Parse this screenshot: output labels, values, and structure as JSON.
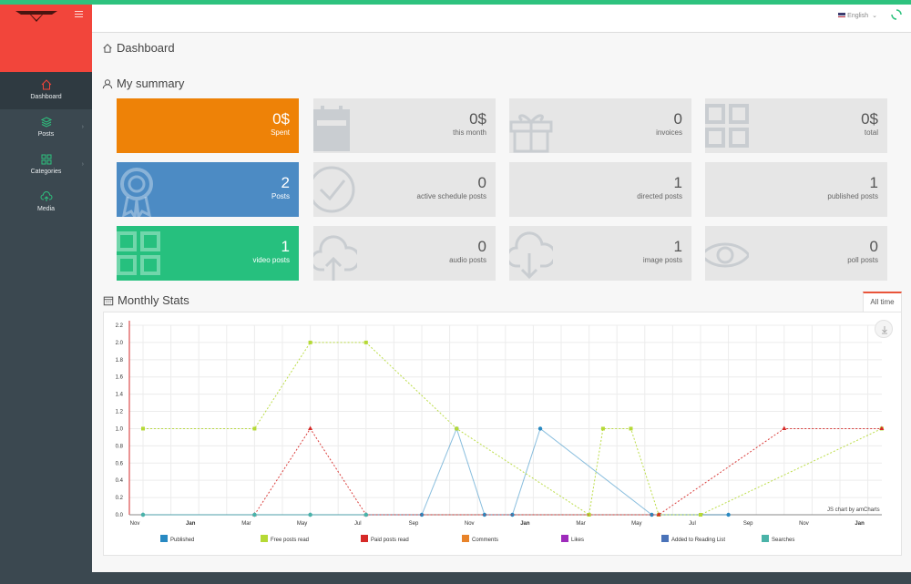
{
  "header": {
    "language": "English"
  },
  "sidebar": {
    "items": [
      {
        "label": "Dashboard",
        "icon": "home-icon",
        "active": true
      },
      {
        "label": "Posts",
        "icon": "layers-icon",
        "has_children": true
      },
      {
        "label": "Categories",
        "icon": "grid-icon",
        "has_children": true
      },
      {
        "label": "Media",
        "icon": "cloud-upload-icon"
      }
    ]
  },
  "breadcrumb": "Dashboard",
  "summary": {
    "title": "My summary",
    "cards": [
      {
        "value": "0$",
        "label": "Spent",
        "color": "#ee8207",
        "icon": "money-icon"
      },
      {
        "value": "0$",
        "label": "this month",
        "color": "#e6e6e6",
        "icon": "calendar-icon"
      },
      {
        "value": "0",
        "label": "invoices",
        "color": "#e6e6e6",
        "icon": "gift-icon"
      },
      {
        "value": "0$",
        "label": "total",
        "color": "#e6e6e6",
        "icon": "grid-icon"
      },
      {
        "value": "2",
        "label": "Posts",
        "color": "#4c8bc4",
        "icon": "award-icon"
      },
      {
        "value": "0",
        "label": "active schedule posts",
        "color": "#e6e6e6",
        "icon": "check-circle-icon"
      },
      {
        "value": "1",
        "label": "directed posts",
        "color": "#e6e6e6",
        "icon": "none"
      },
      {
        "value": "1",
        "label": "published posts",
        "color": "#e6e6e6",
        "icon": "none"
      },
      {
        "value": "1",
        "label": "video posts",
        "color": "#26c07e",
        "icon": "grid-icon"
      },
      {
        "value": "0",
        "label": "audio posts",
        "color": "#e6e6e6",
        "icon": "cloud-upload-icon"
      },
      {
        "value": "1",
        "label": "image posts",
        "color": "#e6e6e6",
        "icon": "cloud-download-icon"
      },
      {
        "value": "0",
        "label": "poll posts",
        "color": "#e6e6e6",
        "icon": "eye-icon"
      }
    ]
  },
  "stats": {
    "title": "Monthly Stats",
    "tab": "All time",
    "credit": "JS chart by amCharts"
  },
  "chart_data": {
    "type": "line",
    "x": [
      "Nov",
      "Jan",
      "Mar",
      "May",
      "Jul",
      "Sep",
      "Nov",
      "Jan",
      "Mar",
      "May",
      "Jul",
      "Sep",
      "Nov",
      "Jan"
    ],
    "bold_ticks": [
      "Jan"
    ],
    "ylim": [
      0,
      2.2
    ],
    "yticks": [
      "0.0",
      "0.2",
      "0.4",
      "0.6",
      "0.8",
      "1.0",
      "1.2",
      "1.4",
      "1.6",
      "1.8",
      "2.0",
      "2.2"
    ],
    "grid": true,
    "legend_placement": "bottom",
    "series": [
      {
        "name": "Published",
        "color": "#2889c2",
        "dashed": false,
        "marker": "circle",
        "points": [
          [
            0,
            0
          ],
          [
            4,
            0
          ],
          [
            6,
            0
          ],
          [
            8,
            0
          ],
          [
            10,
            0
          ],
          [
            11.25,
            1
          ],
          [
            12.25,
            0
          ],
          [
            13.25,
            0
          ],
          [
            14.25,
            1
          ],
          [
            18.25,
            0
          ],
          [
            21,
            0
          ]
        ]
      },
      {
        "name": "Free posts read",
        "color": "#b5d935",
        "dashed": true,
        "marker": "square",
        "points": [
          [
            0,
            1
          ],
          [
            4,
            1
          ],
          [
            6,
            2
          ],
          [
            8,
            2
          ],
          [
            11.25,
            1
          ],
          [
            16,
            0
          ],
          [
            16.5,
            1
          ],
          [
            17.5,
            1
          ],
          [
            18.5,
            0
          ],
          [
            20,
            0
          ],
          [
            26.5,
            1
          ]
        ]
      },
      {
        "name": "Paid posts read",
        "color": "#d62a28",
        "dashed": true,
        "marker": "triangle",
        "points": [
          [
            4,
            0
          ],
          [
            6,
            1
          ],
          [
            8,
            0
          ],
          [
            18.5,
            0
          ],
          [
            23,
            1
          ],
          [
            26.5,
            1
          ]
        ]
      },
      {
        "name": "Comments",
        "color": "#e8832a",
        "points": []
      },
      {
        "name": "Likes",
        "color": "#9e2bbb",
        "points": []
      },
      {
        "name": "Added to Reading List",
        "color": "#4a73b9",
        "points": []
      },
      {
        "name": "Searches",
        "color": "#4ab3a8",
        "dashed": false,
        "marker": "circle",
        "points": [
          [
            0,
            0
          ],
          [
            4,
            0
          ],
          [
            6,
            0
          ],
          [
            8,
            0
          ]
        ]
      }
    ]
  }
}
